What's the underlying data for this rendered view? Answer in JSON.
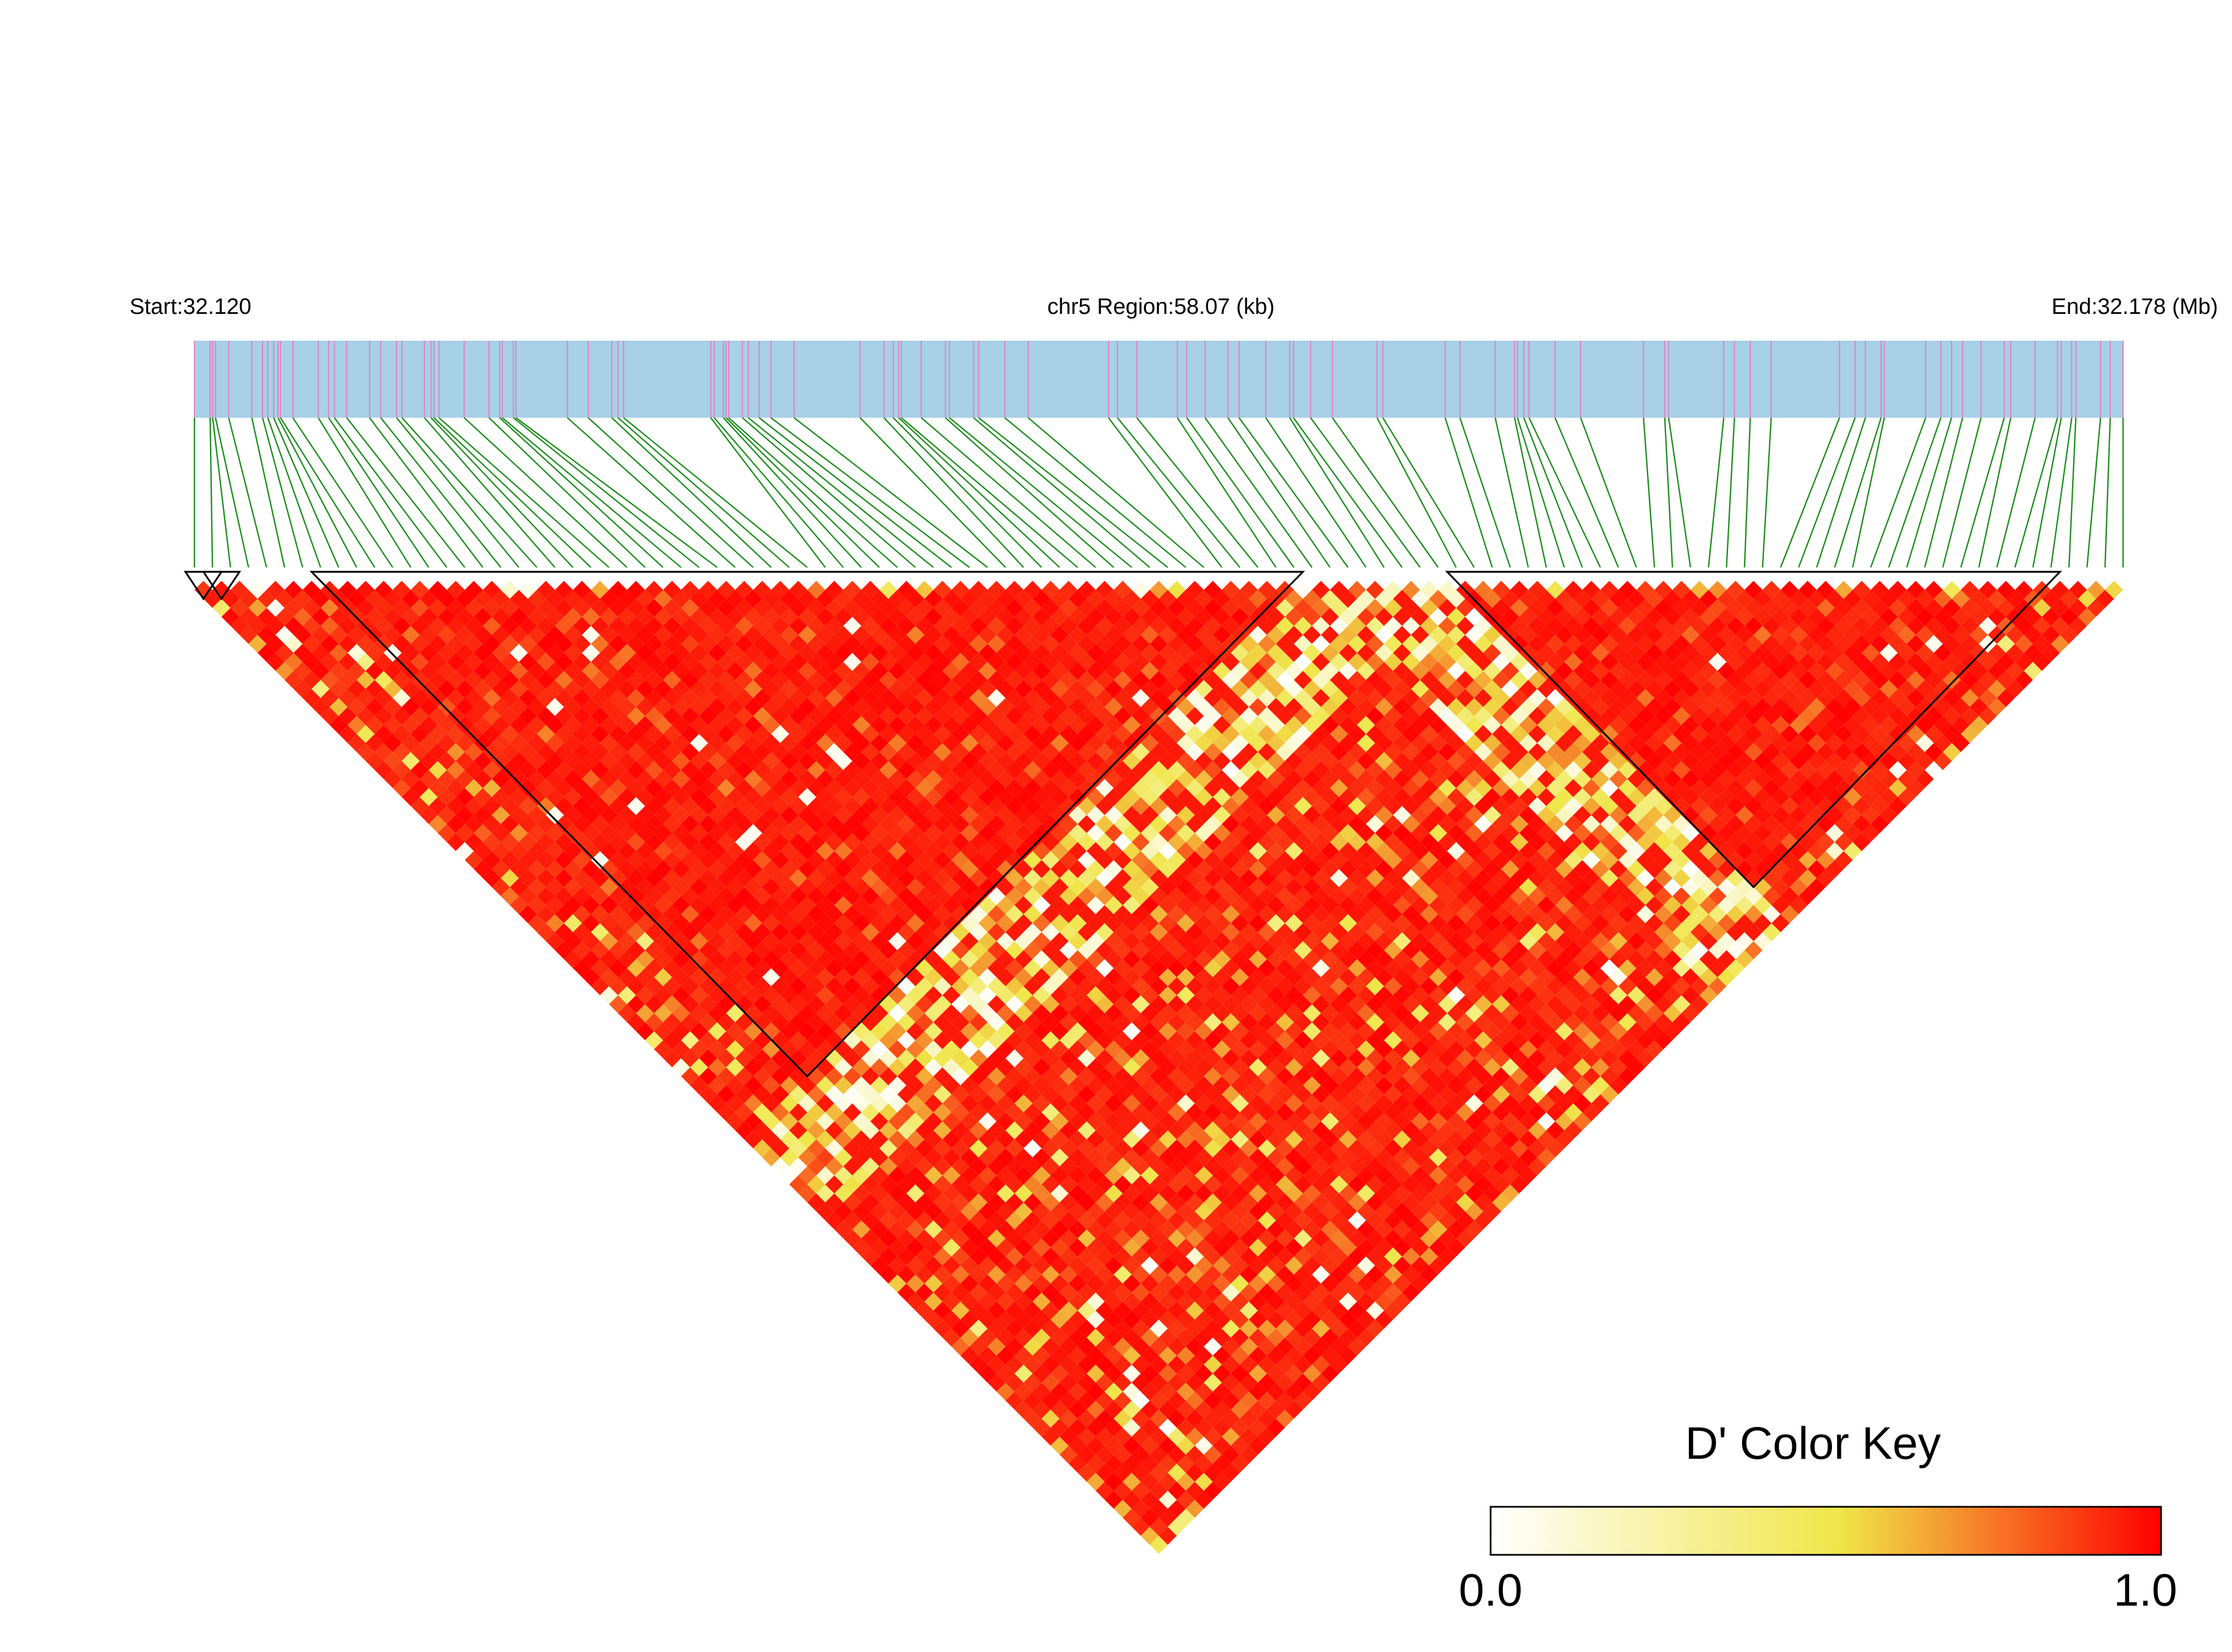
{
  "chart_data": {
    "type": "heatmap",
    "chromosome": "chr5",
    "start_label": "Start:32.120",
    "region_label": "chr5 Region:58.07 (kb)",
    "end_label": "End:32.178 (Mb)",
    "start_mb": 32.12,
    "end_mb": 32.178,
    "region_kb": 58.07,
    "snp_count": 108,
    "blocks": [
      {
        "from_snp": 1,
        "to_snp": 2
      },
      {
        "from_snp": 2,
        "to_snp": 3
      },
      {
        "from_snp": 8,
        "to_snp": 62
      },
      {
        "from_snp": 71,
        "to_snp": 104
      }
    ],
    "color_key": {
      "title": "D' Color Key",
      "min_label": "0.0",
      "max_label": "1.0",
      "min": 0.0,
      "max": 1.0,
      "colors": [
        "#ffffff",
        "#f0e64a",
        "#ff0000"
      ]
    },
    "colors": {
      "track_fill": "#a8d0e6",
      "snp_tick": "#e27fc1",
      "connector": "#1a8c1a",
      "block_outline": "#000000"
    }
  }
}
